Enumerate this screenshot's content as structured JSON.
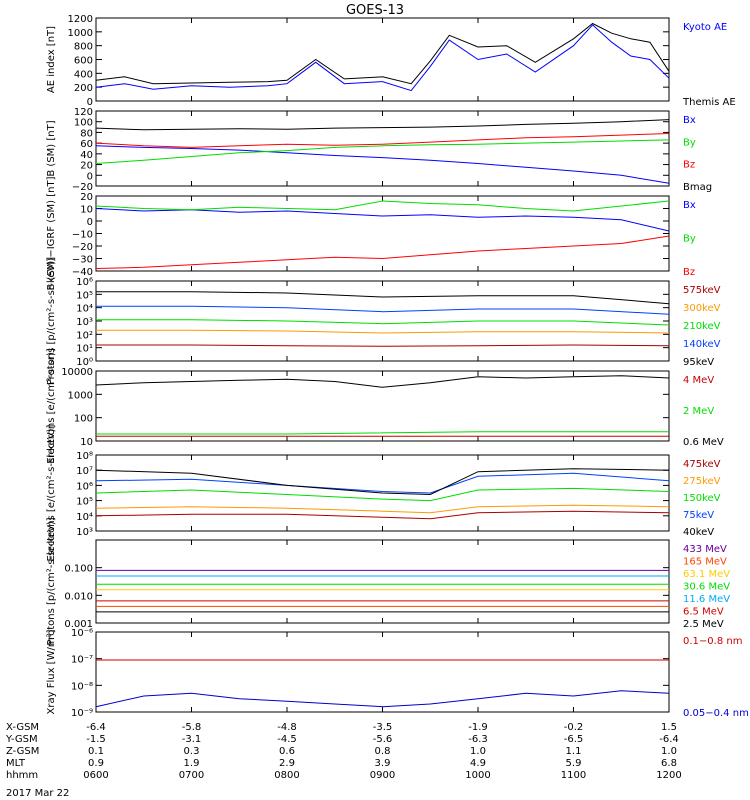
{
  "title": "GOES-13",
  "time_axis": {
    "hhmm": [
      "0600",
      "0700",
      "0800",
      "0900",
      "1000",
      "1100",
      "1200"
    ],
    "date": "2017 Mar 22",
    "rows": [
      {
        "label": "X-GSM",
        "values": [
          "-6.4",
          "-5.8",
          "-4.8",
          "-3.5",
          "-1.9",
          "-0.2",
          "1.5"
        ]
      },
      {
        "label": "Y-GSM",
        "values": [
          "-1.5",
          "-3.1",
          "-4.5",
          "-5.6",
          "-6.3",
          "-6.5",
          "-6.4"
        ]
      },
      {
        "label": "Z-GSM",
        "values": [
          "0.1",
          "0.3",
          "0.6",
          "0.8",
          "1.0",
          "1.1",
          "1.0"
        ]
      },
      {
        "label": "MLT",
        "values": [
          "0.9",
          "1.9",
          "2.9",
          "3.9",
          "4.9",
          "5.9",
          "6.8"
        ]
      },
      {
        "label": "hhmm",
        "values": [
          "0600",
          "0700",
          "0800",
          "0900",
          "1000",
          "1100",
          "1200"
        ]
      }
    ]
  },
  "chart_data": [
    {
      "type": "line",
      "id": "ae",
      "ylabel": "AE index [nT]",
      "ylim": [
        0,
        1200
      ],
      "yscale": "linear",
      "ticks": [
        "0",
        "200",
        "400",
        "600",
        "800",
        "1000",
        "1200"
      ],
      "tick_values": [
        0,
        200,
        400,
        600,
        800,
        1000,
        1200
      ],
      "series": [
        {
          "name": "Kyoto AE",
          "color": "#0000ff",
          "x": [
            6.0,
            6.3,
            6.6,
            7.0,
            7.4,
            7.8,
            8.0,
            8.3,
            8.6,
            9.0,
            9.3,
            9.5,
            9.7,
            10.0,
            10.3,
            10.6,
            11.0,
            11.2,
            11.4,
            11.6,
            11.8,
            12.0
          ],
          "y": [
            200,
            250,
            170,
            220,
            200,
            220,
            250,
            560,
            250,
            280,
            150,
            500,
            880,
            600,
            680,
            420,
            800,
            1100,
            850,
            650,
            600,
            330
          ]
        },
        {
          "name": "Themis AE",
          "color": "#000000",
          "x": [
            6.0,
            6.3,
            6.6,
            7.0,
            7.4,
            7.8,
            8.0,
            8.3,
            8.6,
            9.0,
            9.3,
            9.5,
            9.7,
            10.0,
            10.3,
            10.6,
            11.0,
            11.2,
            11.4,
            11.6,
            11.8,
            12.0
          ],
          "y": [
            300,
            350,
            250,
            260,
            270,
            280,
            300,
            600,
            320,
            350,
            250,
            580,
            950,
            780,
            800,
            560,
            900,
            1120,
            980,
            900,
            850,
            430
          ]
        }
      ]
    },
    {
      "type": "line",
      "id": "bsm",
      "ylabel": "B (SM) [nT]",
      "ylim": [
        -20,
        120
      ],
      "yscale": "linear",
      "ticks": [
        "−20",
        "0",
        "20",
        "40",
        "60",
        "80",
        "100",
        "120"
      ],
      "tick_values": [
        -20,
        0,
        20,
        40,
        60,
        80,
        100,
        120
      ],
      "series": [
        {
          "name": "Bx",
          "color": "#0000ff",
          "x": [
            6.0,
            6.5,
            7.0,
            7.5,
            8.0,
            8.5,
            9.0,
            9.5,
            10.0,
            10.5,
            11.0,
            11.5,
            12.0
          ],
          "y": [
            55,
            52,
            50,
            47,
            42,
            37,
            33,
            28,
            22,
            15,
            8,
            0,
            -15
          ]
        },
        {
          "name": "By",
          "color": "#00dd00",
          "x": [
            6.0,
            6.5,
            7.0,
            7.5,
            8.0,
            8.5,
            9.0,
            9.5,
            10.0,
            10.5,
            11.0,
            11.5,
            12.0
          ],
          "y": [
            22,
            28,
            35,
            42,
            46,
            52,
            55,
            57,
            58,
            60,
            62,
            64,
            66
          ]
        },
        {
          "name": "Bz",
          "color": "#ff0000",
          "x": [
            6.0,
            6.5,
            7.0,
            7.5,
            8.0,
            8.5,
            9.0,
            9.5,
            10.0,
            10.5,
            11.0,
            11.5,
            12.0
          ],
          "y": [
            60,
            55,
            52,
            55,
            58,
            56,
            58,
            62,
            66,
            70,
            72,
            75,
            78
          ]
        },
        {
          "name": "Bmag",
          "color": "#000000",
          "x": [
            6.0,
            6.5,
            7.0,
            7.5,
            8.0,
            8.5,
            9.0,
            9.5,
            10.0,
            10.5,
            11.0,
            11.5,
            12.0
          ],
          "y": [
            88,
            85,
            86,
            87,
            86,
            88,
            89,
            90,
            92,
            95,
            97,
            100,
            104
          ]
        }
      ]
    },
    {
      "type": "line",
      "id": "bigrf",
      "ylabel": "B (SM)−IGRF (SM) [nT]",
      "ylim": [
        -40,
        20
      ],
      "yscale": "linear",
      "ticks": [
        "−40",
        "−30",
        "−20",
        "−10",
        "0",
        "10",
        "20"
      ],
      "tick_values": [
        -40,
        -30,
        -20,
        -10,
        0,
        10,
        20
      ],
      "series": [
        {
          "name": "Bx",
          "color": "#0000ff",
          "x": [
            6.0,
            6.5,
            7.0,
            7.5,
            8.0,
            8.5,
            9.0,
            9.5,
            10.0,
            10.5,
            11.0,
            11.5,
            12.0
          ],
          "y": [
            10,
            8,
            9,
            7,
            8,
            6,
            4,
            5,
            3,
            4,
            3,
            1,
            -8
          ]
        },
        {
          "name": "By",
          "color": "#00dd00",
          "x": [
            6.0,
            6.5,
            7.0,
            7.5,
            8.0,
            8.5,
            9.0,
            9.5,
            10.0,
            10.5,
            11.0,
            11.5,
            12.0
          ],
          "y": [
            12,
            10,
            9,
            11,
            10,
            9,
            16,
            14,
            13,
            10,
            8,
            12,
            16
          ]
        },
        {
          "name": "Bz",
          "color": "#ff0000",
          "x": [
            6.0,
            6.5,
            7.0,
            7.5,
            8.0,
            8.5,
            9.0,
            9.5,
            10.0,
            10.5,
            11.0,
            11.5,
            12.0
          ],
          "y": [
            -38,
            -37,
            -35,
            -33,
            -31,
            -29,
            -30,
            -27,
            -24,
            -22,
            -20,
            -18,
            -12
          ]
        }
      ]
    },
    {
      "type": "line",
      "id": "protons1",
      "ylabel": "Protons [p/(cm²-s-sr-keV)]",
      "ylim": [
        0,
        6
      ],
      "yscale": "log",
      "ticks": [
        "10⁰",
        "10¹",
        "10²",
        "10³",
        "10⁴",
        "10⁵",
        "10⁶"
      ],
      "tick_values": [
        0,
        1,
        2,
        3,
        4,
        5,
        6
      ],
      "series": [
        {
          "name": "575keV",
          "color": "#aa0000",
          "x": [
            6.0,
            7.0,
            8.0,
            9.0,
            10.0,
            11.0,
            12.0
          ],
          "y": [
            1.2,
            1.2,
            1.15,
            1.1,
            1.15,
            1.2,
            1.15
          ]
        },
        {
          "name": "300keV",
          "color": "#ff9900",
          "x": [
            6.0,
            7.0,
            8.0,
            9.0,
            10.0,
            11.0,
            12.0
          ],
          "y": [
            2.3,
            2.3,
            2.25,
            2.1,
            2.2,
            2.2,
            2.1
          ]
        },
        {
          "name": "210keV",
          "color": "#00dd00",
          "x": [
            6.0,
            7.0,
            8.0,
            9.0,
            10.0,
            11.0,
            12.0
          ],
          "y": [
            3.1,
            3.1,
            3.0,
            2.8,
            3.0,
            3.0,
            2.7
          ]
        },
        {
          "name": "140keV",
          "color": "#0040ff",
          "x": [
            6.0,
            7.0,
            8.0,
            9.0,
            10.0,
            11.0,
            12.0
          ],
          "y": [
            4.1,
            4.1,
            4.0,
            3.7,
            3.9,
            3.9,
            3.5
          ]
        },
        {
          "name": "95keV",
          "color": "#000000",
          "x": [
            6.0,
            7.0,
            8.0,
            9.0,
            10.0,
            11.0,
            12.0
          ],
          "y": [
            5.2,
            5.2,
            5.1,
            4.8,
            4.9,
            4.9,
            4.3
          ]
        }
      ]
    },
    {
      "type": "line",
      "id": "electrons1",
      "ylabel": "Electrons [e/(cm²-s-sr)]",
      "ylim": [
        1,
        4
      ],
      "yscale": "log",
      "ticks": [
        "10",
        "100",
        "1000",
        "10000"
      ],
      "tick_values": [
        1,
        2,
        3,
        4
      ],
      "series": [
        {
          "name": "4 MeV",
          "color": "#cc0000",
          "x": [
            6.0,
            8.0,
            10.0,
            12.0
          ],
          "y": [
            1.2,
            1.2,
            1.2,
            1.2
          ]
        },
        {
          "name": "2 MeV",
          "color": "#00dd00",
          "x": [
            6.0,
            8.0,
            10.0,
            12.0
          ],
          "y": [
            1.3,
            1.3,
            1.4,
            1.4
          ]
        },
        {
          "name": "0.6 MeV",
          "color": "#000000",
          "x": [
            6.0,
            6.5,
            7.0,
            7.5,
            8.0,
            8.5,
            9.0,
            9.5,
            10.0,
            10.5,
            11.0,
            11.5,
            12.0
          ],
          "y": [
            3.4,
            3.5,
            3.55,
            3.6,
            3.65,
            3.55,
            3.3,
            3.5,
            3.75,
            3.7,
            3.75,
            3.8,
            3.7
          ]
        }
      ]
    },
    {
      "type": "line",
      "id": "electrons2",
      "ylabel": "Electrons [e/(cm²-s-sr-keV)]",
      "ylim": [
        3,
        8
      ],
      "yscale": "log",
      "ticks": [
        "10³",
        "10⁴",
        "10⁵",
        "10⁶",
        "10⁷",
        "10⁸"
      ],
      "tick_values": [
        3,
        4,
        5,
        6,
        7,
        8
      ],
      "series": [
        {
          "name": "475keV",
          "color": "#aa0000",
          "x": [
            6.0,
            7.0,
            8.0,
            9.0,
            9.5,
            10.0,
            11.0,
            12.0
          ],
          "y": [
            4.0,
            4.1,
            4.1,
            3.9,
            3.8,
            4.2,
            4.3,
            4.2
          ]
        },
        {
          "name": "275keV",
          "color": "#ff9900",
          "x": [
            6.0,
            7.0,
            8.0,
            9.0,
            9.5,
            10.0,
            11.0,
            12.0
          ],
          "y": [
            4.5,
            4.6,
            4.5,
            4.3,
            4.2,
            4.6,
            4.7,
            4.6
          ]
        },
        {
          "name": "150keV",
          "color": "#00dd00",
          "x": [
            6.0,
            7.0,
            8.0,
            9.0,
            9.5,
            10.0,
            11.0,
            12.0
          ],
          "y": [
            5.5,
            5.7,
            5.4,
            5.1,
            5.0,
            5.7,
            5.8,
            5.6
          ]
        },
        {
          "name": "75keV",
          "color": "#0040ff",
          "x": [
            6.0,
            7.0,
            8.0,
            9.0,
            9.5,
            10.0,
            11.0,
            12.0
          ],
          "y": [
            6.3,
            6.4,
            6.0,
            5.6,
            5.5,
            6.6,
            6.8,
            6.3
          ]
        },
        {
          "name": "40keV",
          "color": "#000000",
          "x": [
            6.0,
            7.0,
            8.0,
            9.0,
            9.5,
            10.0,
            11.0,
            12.0
          ],
          "y": [
            7.0,
            6.8,
            6.0,
            5.5,
            5.4,
            6.9,
            7.1,
            7.0
          ]
        }
      ]
    },
    {
      "type": "line",
      "id": "protons2",
      "ylabel": "Protons [p/(cm²-s-sr-keV)]",
      "ylim": [
        -3,
        0
      ],
      "yscale": "log",
      "ticks": [
        "0.001",
        "0.010",
        "0.100"
      ],
      "tick_values": [
        -3,
        -2,
        -1
      ],
      "series": [
        {
          "name": "433 MeV",
          "color": "#660099",
          "x": [
            6.0,
            12.0
          ],
          "y": [
            -1.1,
            -1.1
          ]
        },
        {
          "name": "165 MeV",
          "color": "#ff4400",
          "x": [
            6.0,
            12.0
          ],
          "y": [
            -2.4,
            -2.4
          ]
        },
        {
          "name": "63.1 MeV",
          "color": "#ffcc00",
          "x": [
            6.0,
            12.0
          ],
          "y": [
            -1.8,
            -1.8
          ]
        },
        {
          "name": "30.6 MeV",
          "color": "#00dd00",
          "x": [
            6.0,
            12.0
          ],
          "y": [
            -1.6,
            -1.6
          ]
        },
        {
          "name": "11.6 MeV",
          "color": "#00aaff",
          "x": [
            6.0,
            12.0
          ],
          "y": [
            -1.3,
            -1.3
          ]
        },
        {
          "name": "6.5 MeV",
          "color": "#cc0000",
          "x": [
            6.0,
            12.0
          ],
          "y": [
            -2.2,
            -2.2
          ]
        },
        {
          "name": "2.5 MeV",
          "color": "#000000",
          "x": [
            6.0,
            12.0
          ],
          "y": [
            -2.6,
            -2.6
          ]
        }
      ]
    },
    {
      "type": "line",
      "id": "xray",
      "ylabel": "Xray Flux [W/m²]",
      "ylim": [
        -9,
        -6
      ],
      "yscale": "log",
      "ticks": [
        "10⁻⁹",
        "10⁻⁸",
        "10⁻⁷",
        "10⁻⁶"
      ],
      "tick_values": [
        -9,
        -8,
        -7,
        -6
      ],
      "series": [
        {
          "name": "0.1−0.8 nm",
          "color": "#cc0000",
          "x": [
            6.0,
            12.0
          ],
          "y": [
            -7.05,
            -7.05
          ]
        },
        {
          "name": "0.05−0.4 nm",
          "color": "#0000cc",
          "x": [
            6.0,
            6.5,
            7.0,
            7.5,
            8.0,
            8.5,
            9.0,
            9.5,
            10.0,
            10.5,
            11.0,
            11.5,
            12.0
          ],
          "y": [
            -8.8,
            -8.4,
            -8.3,
            -8.5,
            -8.6,
            -8.7,
            -8.8,
            -8.7,
            -8.5,
            -8.3,
            -8.4,
            -8.2,
            -8.3
          ]
        }
      ]
    }
  ]
}
